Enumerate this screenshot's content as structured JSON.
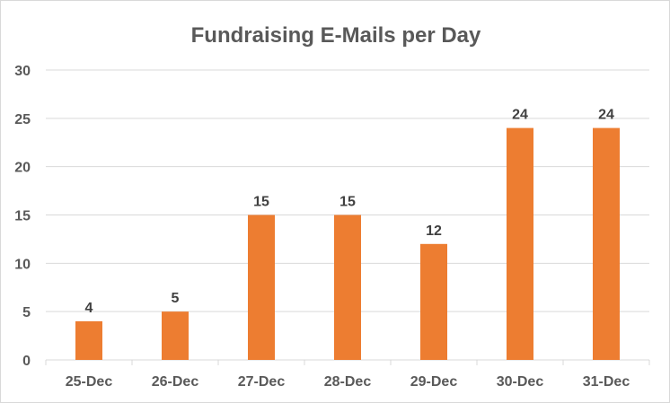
{
  "chart_data": {
    "type": "bar",
    "title": "Fundraising E-Mails per Day",
    "xlabel": "",
    "ylabel": "",
    "categories": [
      "25-Dec",
      "26-Dec",
      "27-Dec",
      "28-Dec",
      "29-Dec",
      "30-Dec",
      "31-Dec"
    ],
    "values": [
      4,
      5,
      15,
      15,
      12,
      24,
      24
    ],
    "data_labels": [
      "4",
      "5",
      "15",
      "15",
      "12",
      "24",
      "24"
    ],
    "ylim": [
      0,
      30
    ],
    "yticks": [
      "0",
      "5",
      "10",
      "15",
      "20",
      "25",
      "30"
    ],
    "grid": true,
    "legend": "none",
    "colors": {
      "bar": "#ED7D31",
      "grid": "#D9D9D9",
      "text": "#595959",
      "title": "#595959"
    }
  }
}
